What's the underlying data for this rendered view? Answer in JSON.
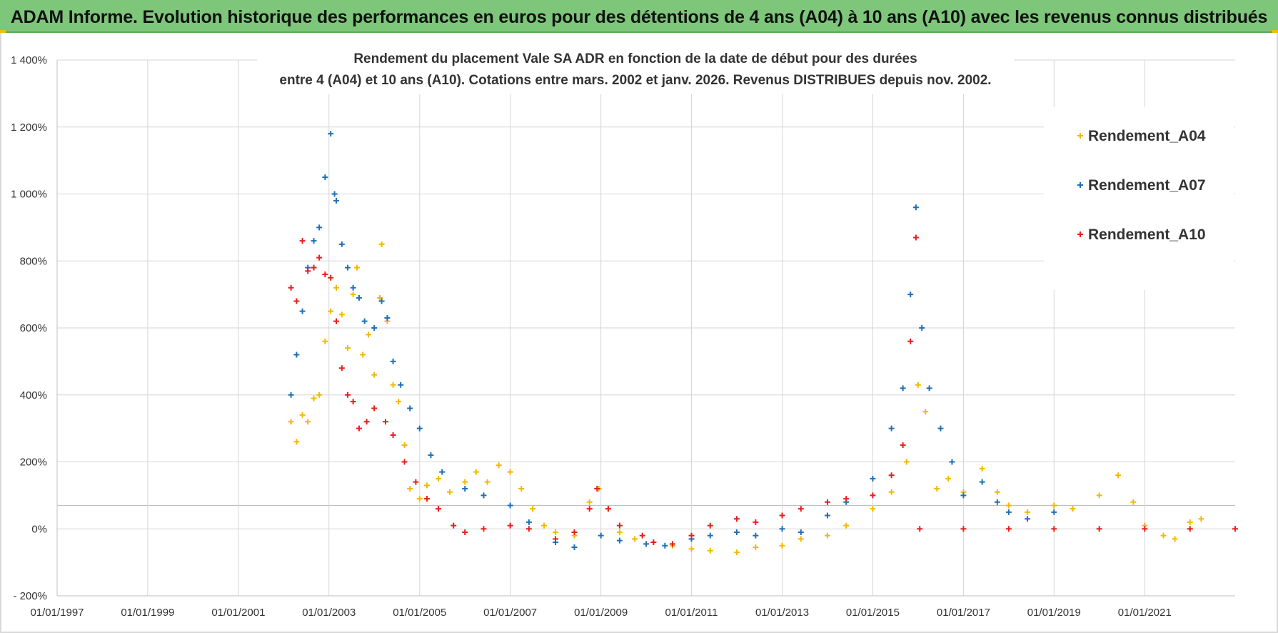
{
  "header": {
    "title": "ADAM Informe. Evolution historique des performances en euros pour des détentions de 4 ans (A04) à 10 ans (A10) avec les revenus connus distribués"
  },
  "chart_data": {
    "type": "scatter",
    "title_line1": "Rendement du placement Vale SA ADR en fonction de la date de début pour des durées",
    "title_line2": "entre 4 (A04) et 10 ans (A10).  Cotations entre mars. 2002 et janv. 2026. Revenus DISTRIBUES depuis nov. 2002.",
    "xlabel": "",
    "ylabel": "",
    "x_range": [
      "1997-01-01",
      "2022-12-31"
    ],
    "ylim": [
      -200,
      1400
    ],
    "x_ticks": [
      "01/01/1997",
      "01/01/1999",
      "01/01/2001",
      "01/01/2003",
      "01/01/2005",
      "01/01/2007",
      "01/01/2009",
      "01/01/2011",
      "01/01/2013",
      "01/01/2015",
      "01/01/2017",
      "01/01/2019",
      "01/01/2021"
    ],
    "y_ticks": [
      -200,
      0,
      200,
      400,
      600,
      800,
      1000,
      1200,
      1400
    ],
    "y_tick_labels": [
      "- 200%",
      "0%",
      "200%",
      "400%",
      "600%",
      "800%",
      "1 000%",
      "1 200%",
      "1 400%"
    ],
    "grid": true,
    "legend_position": "top-right",
    "marker": "+",
    "series": [
      {
        "name": "Rendement_A04",
        "color": "#f5b800",
        "points": [
          [
            "2002-03-01",
            320
          ],
          [
            "2002-04-15",
            260
          ],
          [
            "2002-06-01",
            340
          ],
          [
            "2002-07-15",
            320
          ],
          [
            "2002-09-01",
            390
          ],
          [
            "2002-10-15",
            400
          ],
          [
            "2002-12-01",
            560
          ],
          [
            "2003-01-15",
            650
          ],
          [
            "2003-03-01",
            720
          ],
          [
            "2003-04-15",
            640
          ],
          [
            "2003-06-01",
            540
          ],
          [
            "2003-07-15",
            700
          ],
          [
            "2003-08-15",
            780
          ],
          [
            "2003-10-01",
            520
          ],
          [
            "2003-11-15",
            580
          ],
          [
            "2004-01-01",
            460
          ],
          [
            "2004-02-15",
            690
          ],
          [
            "2004-03-01",
            850
          ],
          [
            "2004-04-15",
            620
          ],
          [
            "2004-06-01",
            430
          ],
          [
            "2004-07-15",
            380
          ],
          [
            "2004-09-01",
            250
          ],
          [
            "2004-10-15",
            120
          ],
          [
            "2005-01-01",
            90
          ],
          [
            "2005-03-01",
            130
          ],
          [
            "2005-06-01",
            150
          ],
          [
            "2005-09-01",
            110
          ],
          [
            "2006-01-01",
            140
          ],
          [
            "2006-04-01",
            170
          ],
          [
            "2006-07-01",
            140
          ],
          [
            "2006-10-01",
            190
          ],
          [
            "2007-01-01",
            170
          ],
          [
            "2007-04-01",
            120
          ],
          [
            "2007-07-01",
            60
          ],
          [
            "2007-10-01",
            10
          ],
          [
            "2008-01-01",
            -10
          ],
          [
            "2008-06-01",
            -20
          ],
          [
            "2008-10-01",
            80
          ],
          [
            "2008-12-15",
            120
          ],
          [
            "2009-03-01",
            60
          ],
          [
            "2009-06-01",
            -10
          ],
          [
            "2009-10-01",
            -30
          ],
          [
            "2010-03-01",
            -40
          ],
          [
            "2010-08-01",
            -50
          ],
          [
            "2011-01-01",
            -60
          ],
          [
            "2011-06-01",
            -65
          ],
          [
            "2012-01-01",
            -70
          ],
          [
            "2012-06-01",
            -55
          ],
          [
            "2013-01-01",
            -50
          ],
          [
            "2013-06-01",
            -30
          ],
          [
            "2014-01-01",
            -20
          ],
          [
            "2014-06-01",
            10
          ],
          [
            "2015-01-01",
            60
          ],
          [
            "2015-06-01",
            110
          ],
          [
            "2015-10-01",
            200
          ],
          [
            "2016-01-01",
            430
          ],
          [
            "2016-03-01",
            350
          ],
          [
            "2016-06-01",
            120
          ],
          [
            "2016-09-01",
            150
          ],
          [
            "2017-01-01",
            110
          ],
          [
            "2017-06-01",
            180
          ],
          [
            "2017-10-01",
            110
          ],
          [
            "2018-01-01",
            70
          ],
          [
            "2018-06-01",
            50
          ],
          [
            "2019-01-01",
            70
          ],
          [
            "2019-06-01",
            60
          ],
          [
            "2020-01-01",
            100
          ],
          [
            "2020-06-01",
            160
          ],
          [
            "2020-10-01",
            80
          ],
          [
            "2021-01-01",
            10
          ],
          [
            "2021-06-01",
            -20
          ],
          [
            "2021-09-01",
            -30
          ],
          [
            "2022-01-01",
            20
          ],
          [
            "2022-04-01",
            30
          ]
        ]
      },
      {
        "name": "Rendement_A07",
        "color": "#1f6fb8",
        "points": [
          [
            "2002-03-01",
            400
          ],
          [
            "2002-04-15",
            520
          ],
          [
            "2002-06-01",
            650
          ],
          [
            "2002-07-15",
            780
          ],
          [
            "2002-09-01",
            860
          ],
          [
            "2002-10-15",
            900
          ],
          [
            "2002-12-01",
            1050
          ],
          [
            "2003-01-15",
            1180
          ],
          [
            "2003-02-15",
            1000
          ],
          [
            "2003-03-01",
            980
          ],
          [
            "2003-04-15",
            850
          ],
          [
            "2003-06-01",
            780
          ],
          [
            "2003-07-15",
            720
          ],
          [
            "2003-09-01",
            690
          ],
          [
            "2003-10-15",
            620
          ],
          [
            "2004-01-01",
            600
          ],
          [
            "2004-03-01",
            680
          ],
          [
            "2004-04-15",
            630
          ],
          [
            "2004-06-01",
            500
          ],
          [
            "2004-08-01",
            430
          ],
          [
            "2004-10-15",
            360
          ],
          [
            "2005-01-01",
            300
          ],
          [
            "2005-04-01",
            220
          ],
          [
            "2005-07-01",
            170
          ],
          [
            "2006-01-01",
            120
          ],
          [
            "2006-06-01",
            100
          ],
          [
            "2007-01-01",
            70
          ],
          [
            "2007-06-01",
            20
          ],
          [
            "2008-01-01",
            -40
          ],
          [
            "2008-06-01",
            -55
          ],
          [
            "2009-01-01",
            -20
          ],
          [
            "2009-06-01",
            -35
          ],
          [
            "2010-01-01",
            -45
          ],
          [
            "2010-06-01",
            -50
          ],
          [
            "2011-01-01",
            -30
          ],
          [
            "2011-06-01",
            -20
          ],
          [
            "2012-01-01",
            -10
          ],
          [
            "2012-06-01",
            -20
          ],
          [
            "2013-01-01",
            0
          ],
          [
            "2013-06-01",
            -10
          ],
          [
            "2014-01-01",
            40
          ],
          [
            "2014-06-01",
            80
          ],
          [
            "2015-01-01",
            150
          ],
          [
            "2015-06-01",
            300
          ],
          [
            "2015-09-01",
            420
          ],
          [
            "2015-11-01",
            700
          ],
          [
            "2015-12-15",
            960
          ],
          [
            "2016-02-01",
            600
          ],
          [
            "2016-04-01",
            420
          ],
          [
            "2016-07-01",
            300
          ],
          [
            "2016-10-01",
            200
          ],
          [
            "2017-01-01",
            100
          ],
          [
            "2017-06-01",
            140
          ],
          [
            "2017-10-01",
            80
          ],
          [
            "2018-01-01",
            50
          ],
          [
            "2018-06-01",
            30
          ],
          [
            "2019-01-01",
            50
          ]
        ]
      },
      {
        "name": "Rendement_A10",
        "color": "#e81e1e",
        "points": [
          [
            "2002-03-01",
            720
          ],
          [
            "2002-04-15",
            680
          ],
          [
            "2002-06-01",
            860
          ],
          [
            "2002-07-15",
            770
          ],
          [
            "2002-09-01",
            780
          ],
          [
            "2002-10-15",
            810
          ],
          [
            "2002-12-01",
            760
          ],
          [
            "2003-01-15",
            750
          ],
          [
            "2003-03-01",
            620
          ],
          [
            "2003-04-15",
            480
          ],
          [
            "2003-06-01",
            400
          ],
          [
            "2003-07-15",
            380
          ],
          [
            "2003-09-01",
            300
          ],
          [
            "2003-11-01",
            320
          ],
          [
            "2004-01-01",
            360
          ],
          [
            "2004-04-01",
            320
          ],
          [
            "2004-06-01",
            280
          ],
          [
            "2004-09-01",
            200
          ],
          [
            "2004-12-01",
            140
          ],
          [
            "2005-03-01",
            90
          ],
          [
            "2005-06-01",
            60
          ],
          [
            "2005-10-01",
            10
          ],
          [
            "2006-01-01",
            -10
          ],
          [
            "2006-06-01",
            0
          ],
          [
            "2007-01-01",
            10
          ],
          [
            "2007-06-01",
            0
          ],
          [
            "2008-01-01",
            -30
          ],
          [
            "2008-06-01",
            -10
          ],
          [
            "2008-10-01",
            60
          ],
          [
            "2008-12-01",
            120
          ],
          [
            "2009-03-01",
            60
          ],
          [
            "2009-06-01",
            10
          ],
          [
            "2009-12-01",
            -20
          ],
          [
            "2010-03-01",
            -40
          ],
          [
            "2010-08-01",
            -45
          ],
          [
            "2011-01-01",
            -20
          ],
          [
            "2011-06-01",
            10
          ],
          [
            "2012-01-01",
            30
          ],
          [
            "2012-06-01",
            20
          ],
          [
            "2013-01-01",
            40
          ],
          [
            "2013-06-01",
            60
          ],
          [
            "2014-01-01",
            80
          ],
          [
            "2014-06-01",
            90
          ],
          [
            "2015-01-01",
            100
          ],
          [
            "2015-06-01",
            160
          ],
          [
            "2015-09-01",
            250
          ],
          [
            "2015-11-01",
            560
          ],
          [
            "2015-12-15",
            870
          ],
          [
            "2016-01-15",
            0
          ],
          [
            "2017-01-01",
            0
          ],
          [
            "2018-01-01",
            0
          ],
          [
            "2019-01-01",
            0
          ],
          [
            "2020-01-01",
            0
          ],
          [
            "2021-01-01",
            0
          ],
          [
            "2022-01-01",
            0
          ],
          [
            "2022-12-31",
            0
          ]
        ]
      }
    ]
  }
}
